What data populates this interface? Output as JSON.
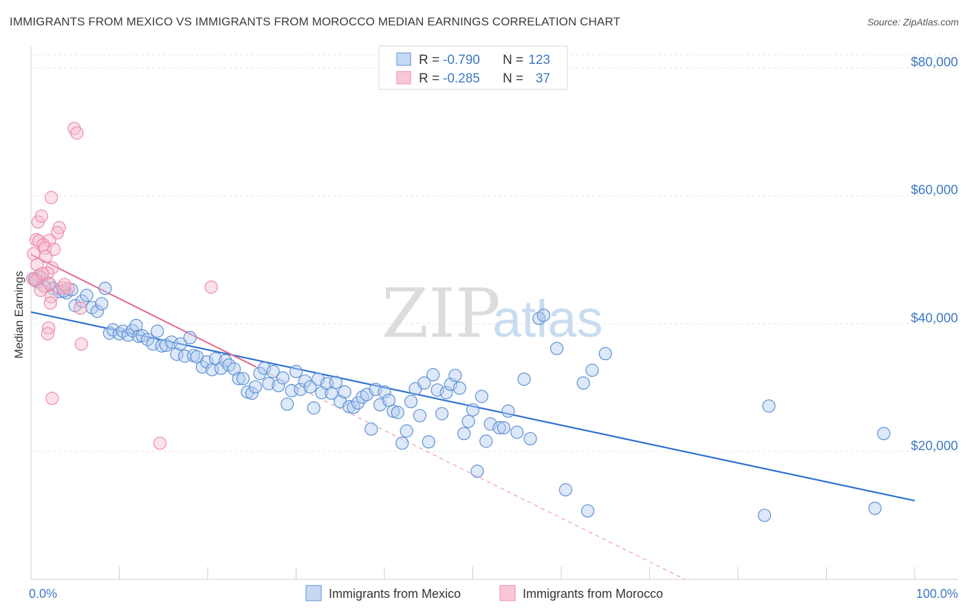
{
  "title": "IMMIGRANTS FROM MEXICO VS IMMIGRANTS FROM MOROCCO MEDIAN EARNINGS CORRELATION CHART",
  "source": "Source: ZipAtlas.com",
  "watermark": {
    "zip": "ZIP",
    "atlas": "atlas"
  },
  "colors": {
    "mexico": "#5b8fd6",
    "mexico_line": "#2a6fd0",
    "morocco": "#ee88a8",
    "morocco_line": "#e0668e",
    "axis_text": "#3d78c4"
  },
  "chart_data": {
    "type": "scatter",
    "xlabel": "",
    "ylabel": "Median Earnings",
    "xlim": [
      0,
      100
    ],
    "ylim": [
      0,
      82000
    ],
    "x_tick_labels": [
      "0.0%",
      "100.0%"
    ],
    "y_ticks": [
      20000,
      40000,
      60000,
      80000
    ],
    "y_tick_labels": [
      "$20,000",
      "$40,000",
      "$60,000",
      "$80,000"
    ],
    "legend": [
      {
        "r_label": "R =",
        "r": "-0.790",
        "n_label": "N =",
        "n": "123"
      },
      {
        "r_label": "R =",
        "r": "-0.285",
        "n_label": "N =",
        "n": "37"
      }
    ],
    "series": [
      {
        "name": "Immigrants from Mexico",
        "color": "#5b8fd6",
        "trend": {
          "x": [
            0,
            100
          ],
          "y": [
            41800,
            12300
          ],
          "style": "solid"
        },
        "points": [
          [
            0.4,
            47000
          ],
          [
            0.8,
            46500
          ],
          [
            1.2,
            47200
          ],
          [
            1.5,
            45800
          ],
          [
            2.0,
            46300
          ],
          [
            2.5,
            45500
          ],
          [
            3.2,
            45000
          ],
          [
            4.0,
            44800
          ],
          [
            4.6,
            45300
          ],
          [
            5.0,
            42800
          ],
          [
            5.8,
            43500
          ],
          [
            6.3,
            44400
          ],
          [
            6.9,
            42500
          ],
          [
            7.5,
            41900
          ],
          [
            8.0,
            43100
          ],
          [
            8.4,
            45500
          ],
          [
            8.9,
            38500
          ],
          [
            9.3,
            39000
          ],
          [
            10.0,
            38400
          ],
          [
            10.4,
            38800
          ],
          [
            11.0,
            38200
          ],
          [
            11.5,
            38900
          ],
          [
            11.9,
            39700
          ],
          [
            12.2,
            38000
          ],
          [
            12.6,
            38100
          ],
          [
            13.2,
            37500
          ],
          [
            13.8,
            36800
          ],
          [
            14.3,
            38800
          ],
          [
            14.8,
            36500
          ],
          [
            15.3,
            36600
          ],
          [
            15.9,
            37100
          ],
          [
            16.5,
            35200
          ],
          [
            16.9,
            36800
          ],
          [
            17.4,
            34900
          ],
          [
            18.0,
            37800
          ],
          [
            18.4,
            35000
          ],
          [
            18.8,
            34800
          ],
          [
            19.4,
            33200
          ],
          [
            19.9,
            34000
          ],
          [
            20.5,
            32800
          ],
          [
            20.9,
            34500
          ],
          [
            21.5,
            33000
          ],
          [
            22.0,
            34200
          ],
          [
            22.4,
            33500
          ],
          [
            23.0,
            32900
          ],
          [
            23.5,
            31400
          ],
          [
            24.0,
            31400
          ],
          [
            24.5,
            29300
          ],
          [
            25.0,
            29100
          ],
          [
            25.4,
            30100
          ],
          [
            25.9,
            32200
          ],
          [
            26.4,
            33000
          ],
          [
            26.9,
            30600
          ],
          [
            27.4,
            32500
          ],
          [
            28.0,
            30300
          ],
          [
            28.5,
            31500
          ],
          [
            29.0,
            27400
          ],
          [
            29.5,
            29500
          ],
          [
            30.0,
            32500
          ],
          [
            30.5,
            29700
          ],
          [
            31.0,
            31000
          ],
          [
            31.6,
            30100
          ],
          [
            32.0,
            26800
          ],
          [
            32.5,
            31300
          ],
          [
            32.9,
            29200
          ],
          [
            33.5,
            30600
          ],
          [
            34.0,
            29100
          ],
          [
            34.5,
            30800
          ],
          [
            35.0,
            27800
          ],
          [
            35.5,
            29300
          ],
          [
            36.0,
            27000
          ],
          [
            36.5,
            26900
          ],
          [
            37.0,
            27600
          ],
          [
            37.5,
            28500
          ],
          [
            38.0,
            28900
          ],
          [
            38.5,
            23500
          ],
          [
            39.0,
            29700
          ],
          [
            39.5,
            27300
          ],
          [
            40.0,
            29300
          ],
          [
            40.5,
            28000
          ],
          [
            41.0,
            26300
          ],
          [
            41.5,
            26100
          ],
          [
            42.0,
            21300
          ],
          [
            42.5,
            23200
          ],
          [
            43.0,
            27800
          ],
          [
            43.5,
            29800
          ],
          [
            44.0,
            25600
          ],
          [
            44.5,
            30700
          ],
          [
            45.0,
            21500
          ],
          [
            45.5,
            32000
          ],
          [
            46.0,
            29600
          ],
          [
            46.5,
            25900
          ],
          [
            47.0,
            29200
          ],
          [
            47.5,
            30500
          ],
          [
            48.0,
            31900
          ],
          [
            48.5,
            29900
          ],
          [
            49.0,
            22800
          ],
          [
            49.5,
            24700
          ],
          [
            50.0,
            26500
          ],
          [
            50.5,
            16900
          ],
          [
            51.0,
            28600
          ],
          [
            51.5,
            21600
          ],
          [
            52.0,
            24300
          ],
          [
            53.0,
            23700
          ],
          [
            53.5,
            23700
          ],
          [
            54.0,
            26300
          ],
          [
            55.0,
            23000
          ],
          [
            55.8,
            31300
          ],
          [
            56.5,
            22000
          ],
          [
            57.5,
            40800
          ],
          [
            58.0,
            41300
          ],
          [
            59.5,
            36100
          ],
          [
            60.5,
            14000
          ],
          [
            62.5,
            30700
          ],
          [
            63.0,
            10700
          ],
          [
            63.5,
            32700
          ],
          [
            65.0,
            35300
          ],
          [
            83.0,
            10000
          ],
          [
            83.5,
            27100
          ],
          [
            95.5,
            11100
          ],
          [
            96.5,
            22800
          ],
          [
            0.6,
            46800
          ],
          [
            3.7,
            45100
          ]
        ]
      },
      {
        "name": "Immigrants from Morocco",
        "color": "#ee88a8",
        "trend": {
          "x": [
            0,
            25.5
          ],
          "y": [
            50800,
            33200
          ],
          "style": "solid"
        },
        "trend_ext": {
          "x": [
            25.5,
            74
          ],
          "y": [
            33200,
            0
          ],
          "style": "dashed"
        },
        "points": [
          [
            4.9,
            70500
          ],
          [
            5.2,
            69800
          ],
          [
            2.3,
            59700
          ],
          [
            0.8,
            55900
          ],
          [
            1.2,
            56800
          ],
          [
            3.2,
            55000
          ],
          [
            3.0,
            54200
          ],
          [
            2.1,
            53000
          ],
          [
            0.6,
            53100
          ],
          [
            0.9,
            52900
          ],
          [
            1.4,
            52300
          ],
          [
            1.6,
            51800
          ],
          [
            2.6,
            51600
          ],
          [
            0.3,
            50900
          ],
          [
            1.7,
            50500
          ],
          [
            0.7,
            49200
          ],
          [
            2.4,
            48700
          ],
          [
            1.9,
            47900
          ],
          [
            0.9,
            47500
          ],
          [
            0.2,
            47000
          ],
          [
            0.5,
            46700
          ],
          [
            2.1,
            46200
          ],
          [
            3.6,
            45600
          ],
          [
            4.2,
            45500
          ],
          [
            1.5,
            45800
          ],
          [
            1.1,
            45200
          ],
          [
            2.3,
            44200
          ],
          [
            2.2,
            43200
          ],
          [
            5.6,
            42400
          ],
          [
            2.0,
            39300
          ],
          [
            1.9,
            38400
          ],
          [
            5.7,
            36800
          ],
          [
            20.4,
            45700
          ],
          [
            2.4,
            28300
          ],
          [
            14.6,
            21300
          ],
          [
            1.3,
            47800
          ],
          [
            3.8,
            46100
          ]
        ]
      }
    ]
  }
}
